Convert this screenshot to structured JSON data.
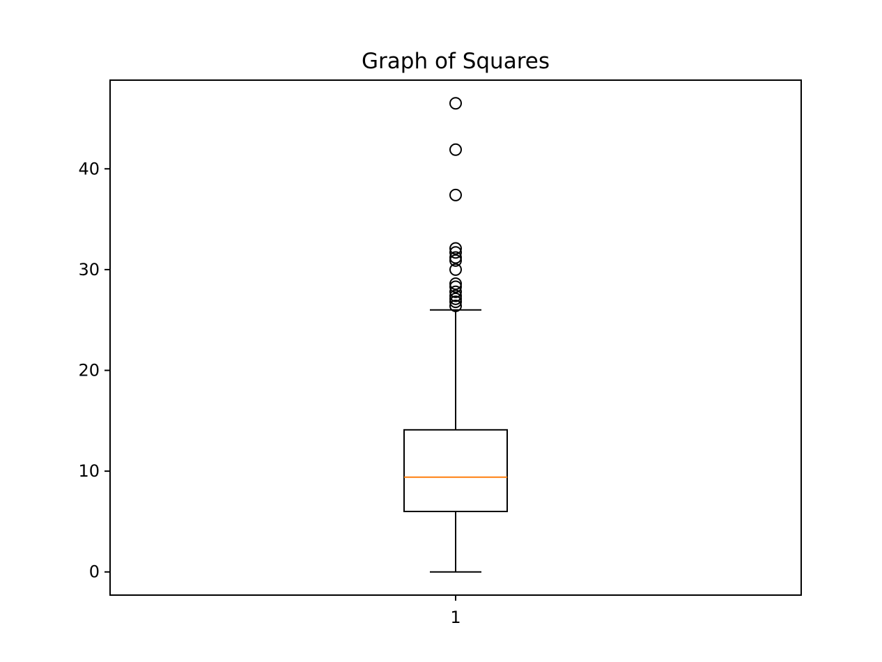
{
  "chart_data": {
    "type": "box",
    "title": "Graph of Squares",
    "xlabel": "",
    "ylabel": "",
    "categories": [
      "1"
    ],
    "ylim": [
      -2.3,
      48.8
    ],
    "yticks": [
      0,
      10,
      20,
      30,
      40
    ],
    "grid": false,
    "boxes": [
      {
        "category": "1",
        "whisker_low": 0,
        "q1": 6.0,
        "median": 9.4,
        "q3": 14.1,
        "whisker_high": 26.0,
        "outliers": [
          26.4,
          26.8,
          27.1,
          27.4,
          27.8,
          28.3,
          28.6,
          30.0,
          30.9,
          31.2,
          31.7,
          32.1,
          37.4,
          41.9,
          46.5
        ]
      }
    ],
    "colors": {
      "box": "#000000",
      "median": "#ff7f0e",
      "outlier": "#000000"
    }
  }
}
